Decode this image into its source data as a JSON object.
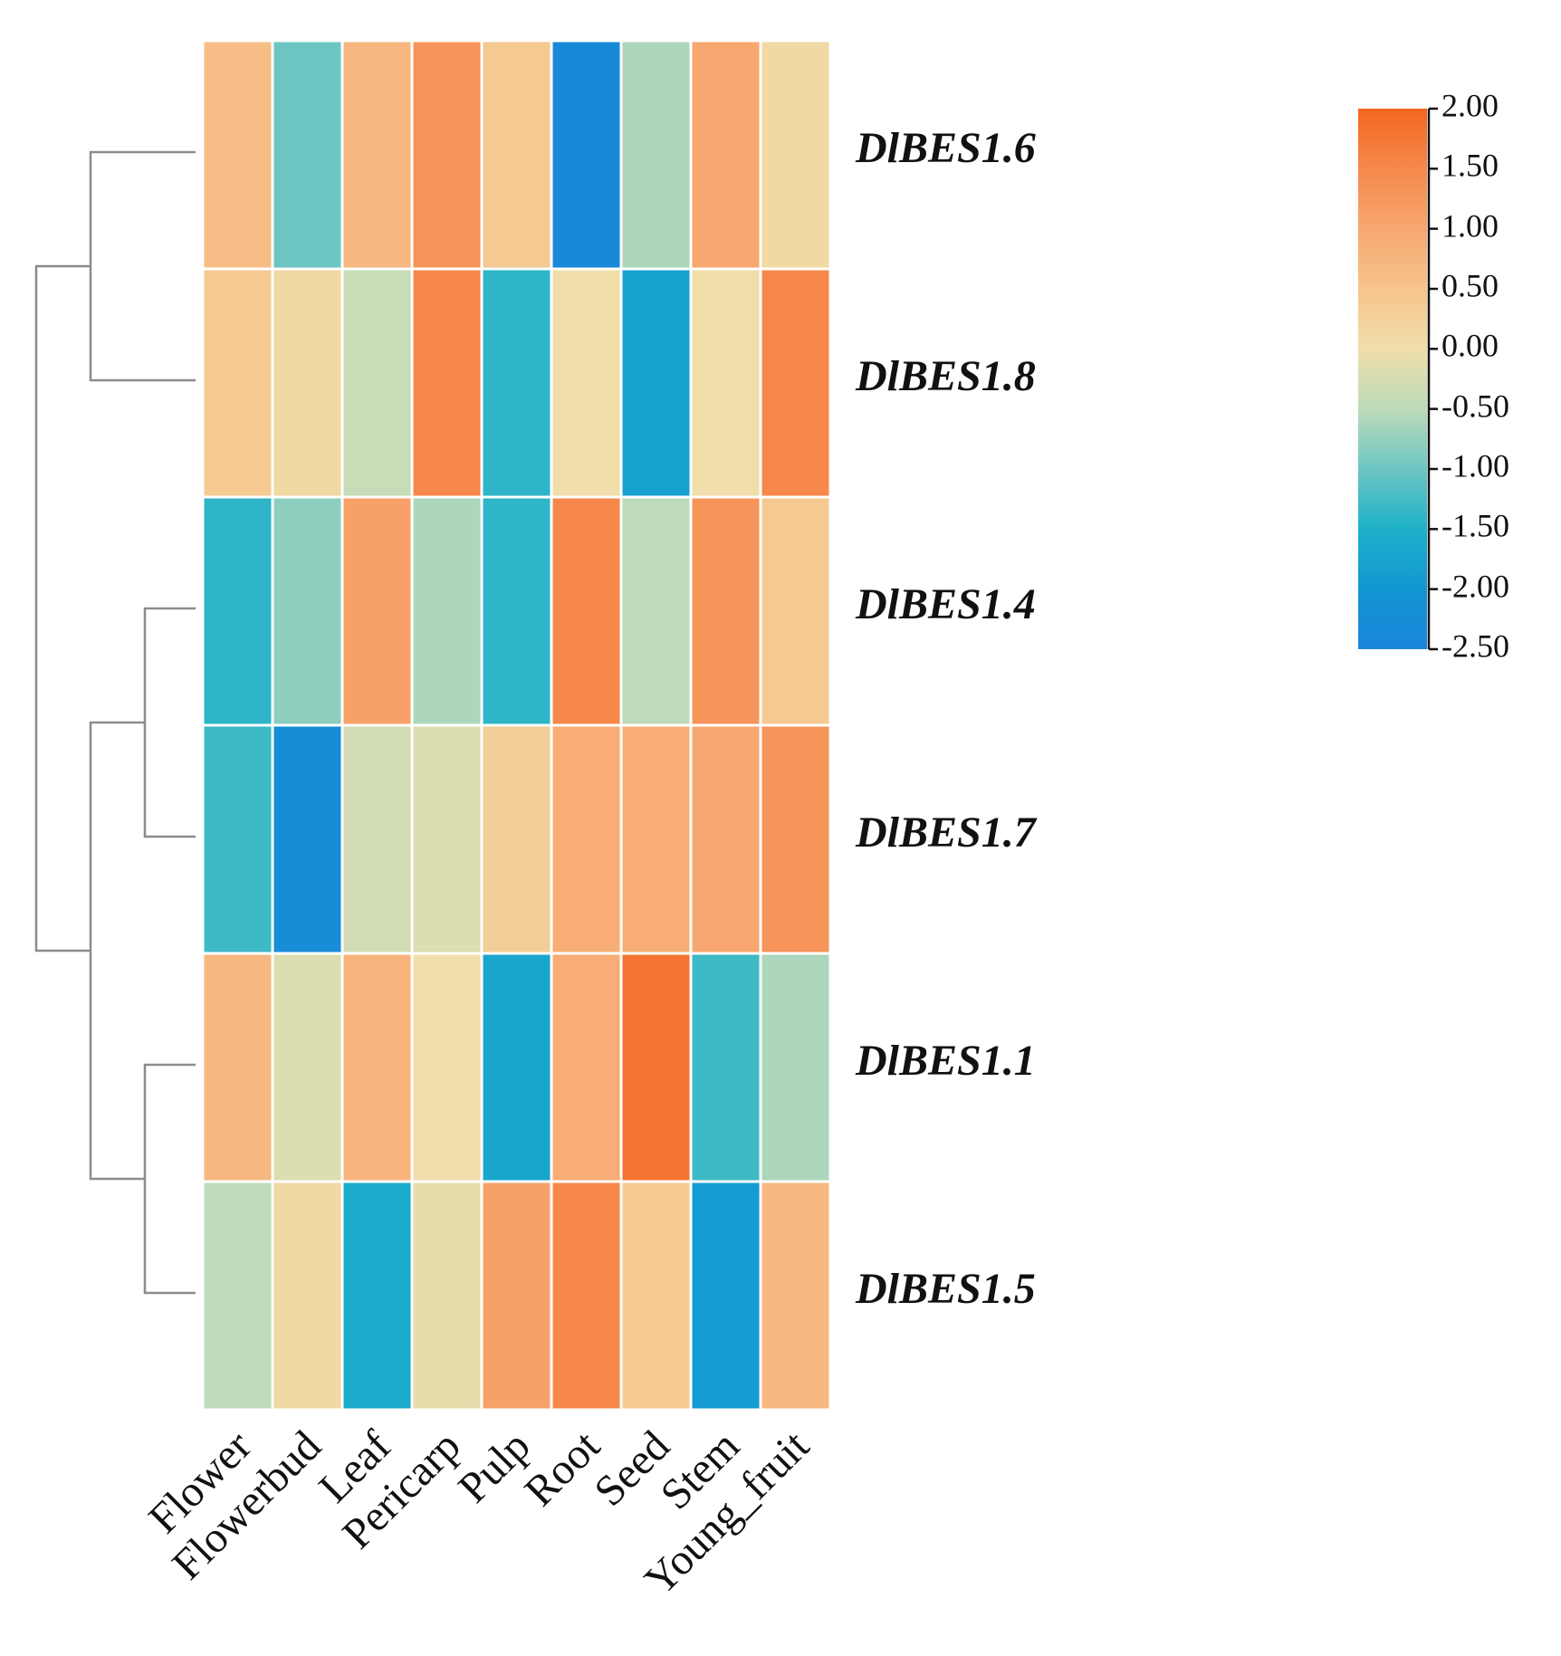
{
  "chart_data": {
    "type": "heatmap",
    "title": "",
    "rows": [
      "DlBES1.6",
      "DlBES1.8",
      "DlBES1.4",
      "DlBES1.7",
      "DlBES1.1",
      "DlBES1.5"
    ],
    "columns": [
      "Flower",
      "Flowerbud",
      "Leaf",
      "Pericarp",
      "Pulp",
      "Root",
      "Seed",
      "Stem",
      "Young_fruit"
    ],
    "values": [
      [
        0.6,
        -1.0,
        0.7,
        1.3,
        0.4,
        -2.4,
        -0.6,
        1.0,
        0.1
      ],
      [
        0.4,
        0.1,
        -0.4,
        1.5,
        -1.4,
        0.0,
        -1.8,
        0.0,
        1.5
      ],
      [
        -1.4,
        -0.8,
        1.1,
        -0.6,
        -1.4,
        1.5,
        -0.5,
        1.3,
        0.4
      ],
      [
        -1.3,
        -2.3,
        -0.3,
        -0.2,
        0.3,
        0.9,
        0.9,
        1.0,
        1.3
      ],
      [
        0.7,
        -0.2,
        0.8,
        0.0,
        -1.7,
        0.9,
        1.8,
        -1.3,
        -0.6
      ],
      [
        -0.5,
        0.1,
        -1.6,
        -0.1,
        1.1,
        1.5,
        0.4,
        -1.9,
        0.7
      ]
    ],
    "colorbar": {
      "ticks": [
        "2.00",
        "1.50",
        "1.00",
        "0.50",
        "0.00",
        "-0.50",
        "-1.00",
        "-1.50",
        "-2.00",
        "-2.50"
      ],
      "min": -2.5,
      "max": 2.0,
      "stops": [
        {
          "value": -2.5,
          "color": "#1a86db"
        },
        {
          "value": -2.0,
          "color": "#1296d2"
        },
        {
          "value": -1.5,
          "color": "#1eb1c9"
        },
        {
          "value": -1.0,
          "color": "#6dc6c2"
        },
        {
          "value": -0.5,
          "color": "#bddbba"
        },
        {
          "value": 0.0,
          "color": "#f0deaa"
        },
        {
          "value": 0.5,
          "color": "#f6c48c"
        },
        {
          "value": 1.0,
          "color": "#f7a76f"
        },
        {
          "value": 1.5,
          "color": "#f6884b"
        },
        {
          "value": 2.0,
          "color": "#f5661f"
        }
      ]
    },
    "dendrogram_color": "#8c8c8c",
    "xlabel": "",
    "ylabel": "",
    "legend": "right"
  }
}
